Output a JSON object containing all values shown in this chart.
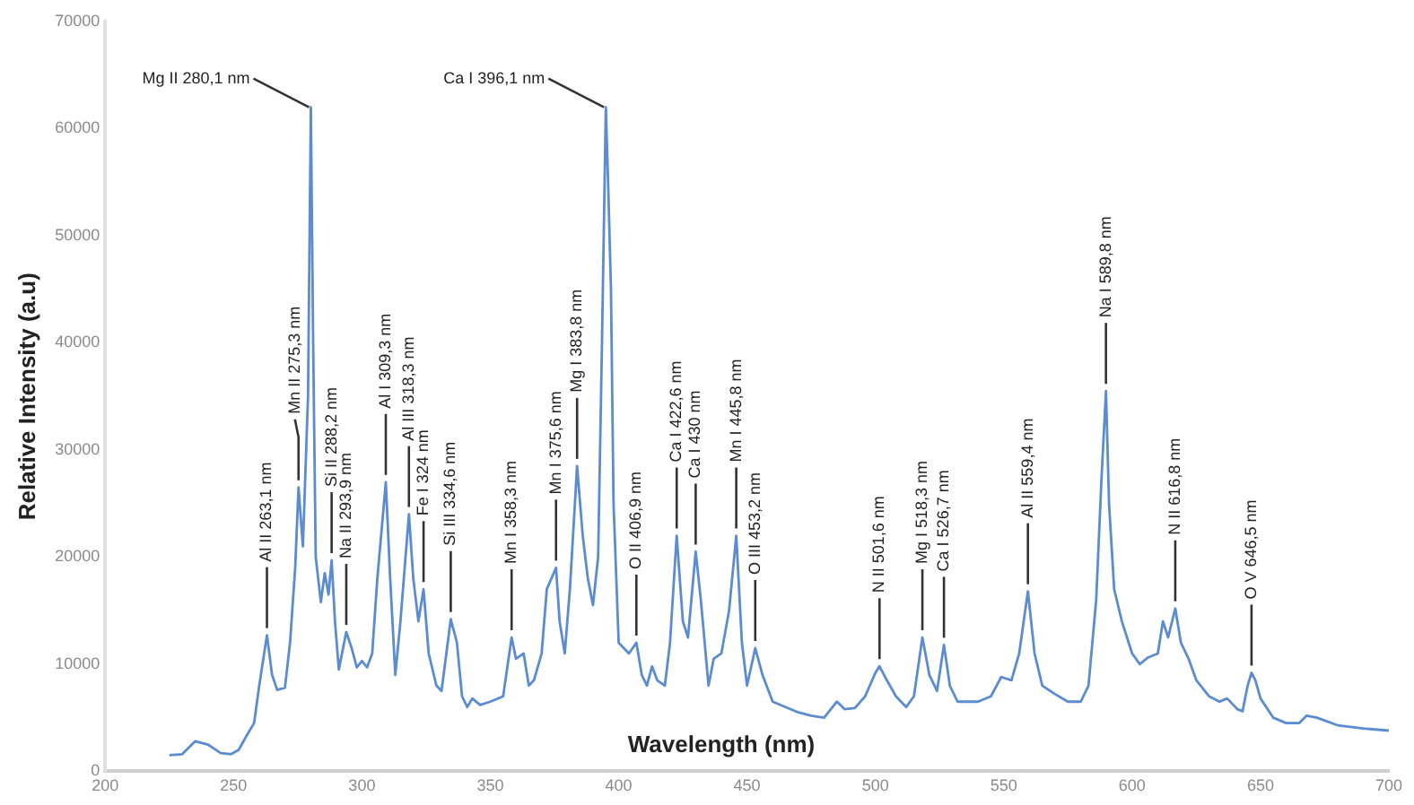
{
  "chart_data": {
    "type": "line",
    "xlabel": "Wavelength (nm)",
    "ylabel": "Relative Intensity (a.u)",
    "xlim": [
      200,
      700
    ],
    "xticks": [
      200,
      250,
      300,
      350,
      400,
      450,
      500,
      550,
      600,
      650,
      700
    ],
    "ylim": [
      0,
      70000
    ],
    "yticks": [
      0,
      10000,
      20000,
      30000,
      40000,
      50000,
      60000,
      70000
    ],
    "grid": false,
    "legend": false,
    "marker": "none",
    "line_style": "solid",
    "series": [
      {
        "color": "#5b8bd0",
        "x": [
          225,
          230,
          235,
          240,
          245,
          249,
          252,
          255,
          258,
          260,
          263,
          265,
          267,
          270,
          272,
          274,
          275.3,
          277,
          279,
          280.1,
          281,
          282,
          284,
          285.5,
          287,
          288.2,
          289.5,
          291,
          293.9,
          296,
          298,
          300,
          302,
          304,
          306,
          309.3,
          311,
          313,
          315,
          318.3,
          320,
          322,
          324,
          326,
          329,
          331,
          334.6,
          337,
          339,
          341,
          343,
          346,
          350,
          355,
          358.3,
          360,
          363,
          365,
          367,
          370,
          372,
          375.6,
          377,
          379,
          381,
          383.8,
          386,
          388,
          390,
          392,
          393.5,
          395,
          396,
          397,
          398,
          400,
          402,
          404,
          406.9,
          409,
          411,
          413,
          415,
          418,
          420,
          422.6,
          425,
          427,
          430,
          432,
          435,
          437,
          440,
          443,
          445.8,
          448,
          450,
          453.2,
          456,
          460,
          465,
          470,
          475,
          480,
          485,
          488,
          492,
          496,
          500,
          501.6,
          504,
          508,
          512,
          515,
          518.3,
          521,
          524,
          526.7,
          529,
          532,
          540,
          545,
          549,
          553,
          556,
          559.4,
          562,
          565,
          570,
          575,
          580,
          583,
          586,
          588,
          589.8,
          591,
          593,
          596,
          600,
          603,
          606,
          610,
          612,
          614,
          616.8,
          619,
          622,
          625,
          630,
          634,
          637,
          641,
          643,
          645,
          646.5,
          648,
          650,
          655,
          660,
          665,
          668,
          672,
          680,
          690,
          700
        ],
        "values": [
          1500,
          1600,
          2800,
          2500,
          1700,
          1600,
          2000,
          3300,
          4500,
          8000,
          12700,
          9000,
          7600,
          7800,
          12000,
          19000,
          26500,
          21000,
          35000,
          62000,
          40000,
          20000,
          15800,
          18500,
          16500,
          19700,
          14000,
          9500,
          13000,
          11500,
          9700,
          10300,
          9700,
          11000,
          18000,
          27000,
          18000,
          9000,
          14000,
          24000,
          18000,
          14000,
          17000,
          11000,
          8000,
          7500,
          14200,
          12000,
          7000,
          6000,
          6800,
          6200,
          6500,
          7000,
          12500,
          10500,
          11000,
          8000,
          8500,
          11000,
          17000,
          19000,
          14000,
          11000,
          17000,
          28500,
          22000,
          18000,
          15500,
          20000,
          40000,
          62000,
          54000,
          45000,
          25000,
          12000,
          11500,
          11000,
          12000,
          9000,
          8000,
          9800,
          8500,
          8000,
          12000,
          22000,
          14000,
          12500,
          20500,
          16000,
          8000,
          10500,
          11000,
          15000,
          22000,
          12000,
          8000,
          11500,
          9000,
          6500,
          6000,
          5500,
          5200,
          5000,
          6500,
          5800,
          5900,
          7000,
          9200,
          9800,
          8700,
          7000,
          6000,
          7000,
          12500,
          9000,
          7500,
          11800,
          8000,
          6500,
          6500,
          7000,
          8800,
          8500,
          11000,
          16800,
          11000,
          8000,
          7200,
          6500,
          6500,
          8000,
          16000,
          27000,
          35500,
          25000,
          17000,
          14000,
          11000,
          10000,
          10600,
          11000,
          14000,
          12500,
          15200,
          12000,
          10500,
          8500,
          7000,
          6500,
          6800,
          5800,
          5600,
          8000,
          9200,
          8500,
          6800,
          5000,
          4500,
          4500,
          5200,
          5000,
          4300,
          4000,
          3800
        ]
      }
    ],
    "annotations": [
      {
        "text": "Mg II 280,1 nm",
        "x": 280.1,
        "y": 62000
      },
      {
        "text": "Ca I 396,1 nm",
        "x": 395,
        "y": 62000
      },
      {
        "text": "Al II 263,1 nm",
        "x": 263,
        "y": 12700
      },
      {
        "text": "Mn II 275,3 nm",
        "x": 275.3,
        "y": 26500
      },
      {
        "text": "Si II 288,2 nm",
        "x": 288.2,
        "y": 19700
      },
      {
        "text": "Na II 293,9 nm",
        "x": 293.9,
        "y": 13000
      },
      {
        "text": "Al I 309,3 nm",
        "x": 309.3,
        "y": 27000
      },
      {
        "text": "Al III 318,3 nm",
        "x": 318.3,
        "y": 24000
      },
      {
        "text": "Fe I 324 nm",
        "x": 324,
        "y": 17000
      },
      {
        "text": "Si III 334,6 nm",
        "x": 334.6,
        "y": 14200
      },
      {
        "text": "Mn I 358,3 nm",
        "x": 358.3,
        "y": 12500
      },
      {
        "text": "Mn I 375,6 nm",
        "x": 375.6,
        "y": 19000
      },
      {
        "text": "Mg I 383,8 nm",
        "x": 383.8,
        "y": 28500
      },
      {
        "text": "O II 406,9 nm",
        "x": 406.9,
        "y": 12000
      },
      {
        "text": "Ca I 422,6 nm",
        "x": 422.6,
        "y": 22000
      },
      {
        "text": "Ca I 430 nm",
        "x": 430,
        "y": 20500
      },
      {
        "text": "Mn I 445,8 nm",
        "x": 445.8,
        "y": 22000
      },
      {
        "text": "O III 453,2 nm",
        "x": 453.2,
        "y": 11500
      },
      {
        "text": "N II 501,6 nm",
        "x": 501.6,
        "y": 9800
      },
      {
        "text": "Mg I 518,3 nm",
        "x": 518.3,
        "y": 12500
      },
      {
        "text": "Ca I 526,7 nm",
        "x": 526.7,
        "y": 11800
      },
      {
        "text": "Al II 559,4 nm",
        "x": 559.4,
        "y": 16800
      },
      {
        "text": "Na I 589,8 nm",
        "x": 589.8,
        "y": 35500
      },
      {
        "text": "N II 616,8 nm",
        "x": 616.8,
        "y": 15200
      },
      {
        "text": "O V 646,5 nm",
        "x": 646.5,
        "y": 9200
      }
    ]
  }
}
